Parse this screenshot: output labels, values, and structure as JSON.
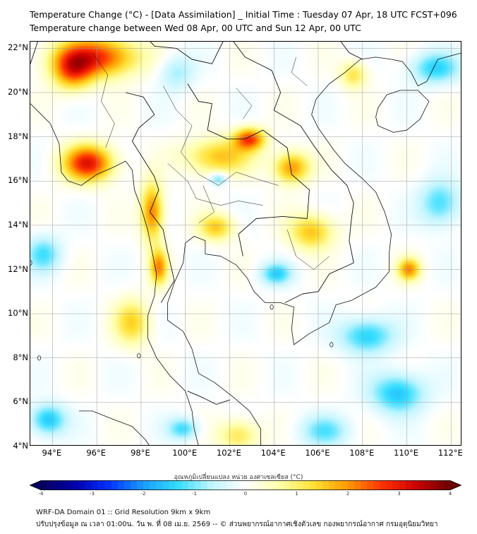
{
  "header": {
    "title_line1": "Temperature Change (°C) - [Data Assimilation] _ Initial Time : Tuesday 07 Apr, 18 UTC FCST+096",
    "title_line2": "Temperature change between Wed 08 Apr, 00 UTC and Sun 12 Apr, 00 UTC"
  },
  "map": {
    "lat_labels": [
      "22°N",
      "20°N",
      "18°N",
      "16°N",
      "14°N",
      "12°N",
      "10°N",
      "8°N",
      "6°N",
      "4°N"
    ],
    "lon_labels": [
      "94°E",
      "96°E",
      "98°E",
      "100°E",
      "102°E",
      "104°E",
      "106°E",
      "108°E",
      "110°E",
      "112°E"
    ],
    "lat_values": [
      22,
      20,
      18,
      16,
      14,
      12,
      10,
      8,
      6,
      4
    ],
    "lon_values": [
      94,
      96,
      98,
      100,
      102,
      104,
      106,
      108,
      110,
      112
    ],
    "extent": {
      "lon": [
        93,
        112.5
      ],
      "lat": [
        4,
        22.3
      ]
    },
    "hotspots": [
      {
        "lon": 96.0,
        "lat": 21.6,
        "value": 2.7,
        "rlon": 1.8,
        "rlat": 0.9
      },
      {
        "lon": 94.9,
        "lat": 21.0,
        "value": 2.0,
        "rlon": 0.9,
        "rlat": 0.9
      },
      {
        "lon": 95.6,
        "lat": 16.8,
        "value": 3.0,
        "rlon": 1.1,
        "rlat": 0.8
      },
      {
        "lon": 98.5,
        "lat": 14.6,
        "value": 2.2,
        "rlon": 0.5,
        "rlat": 1.3
      },
      {
        "lon": 98.8,
        "lat": 12.1,
        "value": 2.0,
        "rlon": 0.4,
        "rlat": 0.8
      },
      {
        "lon": 102.9,
        "lat": 17.9,
        "value": 2.5,
        "rlon": 0.7,
        "rlat": 0.5
      },
      {
        "lon": 101.5,
        "lat": 17.1,
        "value": 1.6,
        "rlon": 1.5,
        "rlat": 0.8
      },
      {
        "lon": 104.8,
        "lat": 16.6,
        "value": 2.0,
        "rlon": 0.8,
        "rlat": 0.7
      },
      {
        "lon": 105.7,
        "lat": 13.7,
        "value": 1.6,
        "rlon": 1.0,
        "rlat": 0.8
      },
      {
        "lon": 110.1,
        "lat": 12.0,
        "value": 2.0,
        "rlon": 0.5,
        "rlat": 0.5
      },
      {
        "lon": 101.4,
        "lat": 13.9,
        "value": 1.5,
        "rlon": 0.8,
        "rlat": 0.6
      },
      {
        "lon": 107.6,
        "lat": 20.8,
        "value": 1.2,
        "rlon": 0.6,
        "rlat": 0.6
      },
      {
        "lon": 97.6,
        "lat": 9.6,
        "value": 1.4,
        "rlon": 0.8,
        "rlat": 1.0
      },
      {
        "lon": 102.4,
        "lat": 4.5,
        "value": 1.2,
        "rlon": 0.9,
        "rlat": 0.7
      },
      {
        "lon": 108.2,
        "lat": 9.0,
        "value": -1.5,
        "rlon": 1.2,
        "rlat": 0.8
      },
      {
        "lon": 109.6,
        "lat": 6.4,
        "value": -1.6,
        "rlon": 1.2,
        "rlat": 0.9
      },
      {
        "lon": 93.8,
        "lat": 5.2,
        "value": -1.6,
        "rlon": 0.8,
        "rlat": 0.7
      },
      {
        "lon": 104.1,
        "lat": 11.8,
        "value": -1.4,
        "rlon": 0.7,
        "rlat": 0.5
      },
      {
        "lon": 111.3,
        "lat": 21.1,
        "value": -1.4,
        "rlon": 1.1,
        "rlat": 0.7
      },
      {
        "lon": 101.5,
        "lat": 16.1,
        "value": -1.2,
        "rlon": 0.4,
        "rlat": 0.3
      },
      {
        "lon": 93.6,
        "lat": 12.7,
        "value": -1.2,
        "rlon": 0.8,
        "rlat": 0.8
      },
      {
        "lon": 111.5,
        "lat": 15.0,
        "value": -1.3,
        "rlon": 0.9,
        "rlat": 1.0
      },
      {
        "lon": 99.9,
        "lat": 4.8,
        "value": -1.3,
        "rlon": 0.7,
        "rlat": 0.5
      },
      {
        "lon": 106.3,
        "lat": 4.7,
        "value": -1.1,
        "rlon": 1.1,
        "rlat": 0.7
      },
      {
        "lon": 99.6,
        "lat": 20.9,
        "value": -0.8,
        "rlon": 0.8,
        "rlat": 0.8
      }
    ]
  },
  "colorbar": {
    "title": "อุณหภูมิเปลี่ยนแปลง หน่วย องศาเซลเซียส (°C)",
    "ticks": [
      "-4",
      "-3",
      "-2",
      "-1",
      "0",
      "1",
      "2",
      "3",
      "4"
    ],
    "tick_values": [
      -4,
      -3,
      -2,
      -1,
      0,
      1,
      2,
      3,
      4
    ],
    "range": [
      -4,
      4
    ],
    "colors": [
      "#08005c",
      "#0000aa",
      "#0033ff",
      "#1a9bff",
      "#33ddff",
      "#bff5ff",
      "#ffffff",
      "#ffffaa",
      "#ffe033",
      "#ff9900",
      "#ff3300",
      "#cc0000",
      "#6a0000"
    ]
  },
  "footer": {
    "line1": "WRF-DA Domain 01 :: Grid Resolution 9km x 9km",
    "line2": "ปรับปรุงข้อมูล ณ เวลา 01:00น. วัน พ. ที่ 08 เม.ย. 2569 -- © ส่วนพยากรณ์อากาศเชิงตัวเลข กองพยากรณ์อากาศ กรมอุตุนิยมวิทยา"
  }
}
